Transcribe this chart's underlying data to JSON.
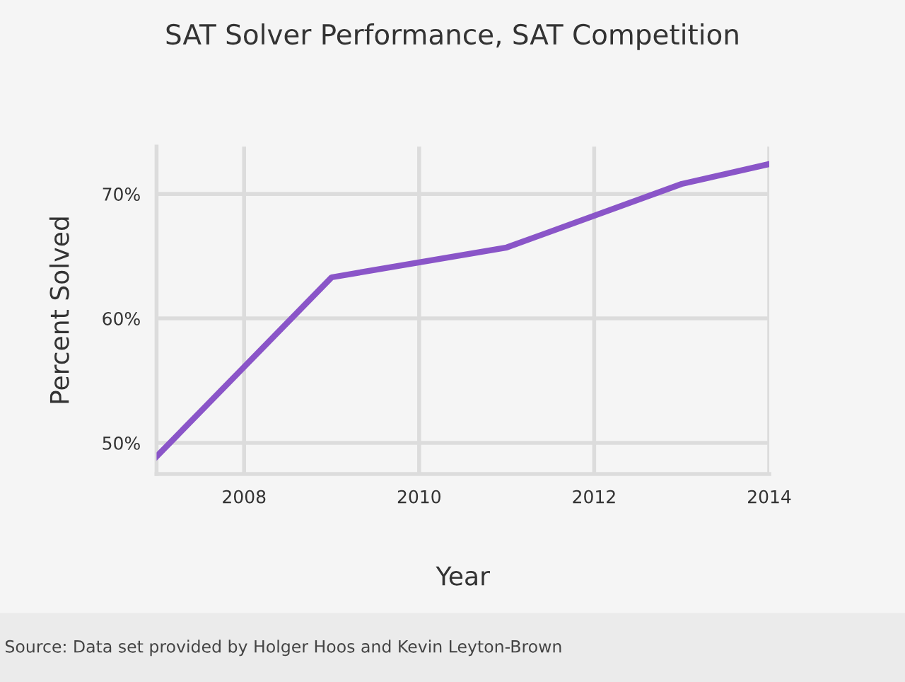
{
  "chart_data": {
    "type": "line",
    "title": "SAT Solver Performance, SAT Competition",
    "xlabel": "Year",
    "ylabel": "Percent Solved",
    "x": [
      2007,
      2009,
      2011,
      2013,
      2014
    ],
    "series": [
      {
        "color": "#8a55c8",
        "values": [
          48.9,
          63.3,
          65.7,
          70.8,
          72.4
        ]
      }
    ],
    "xlim": [
      2007,
      2014
    ],
    "xticks": [
      2008,
      2010,
      2012,
      2014
    ],
    "ylim": [
      47.5,
      73.8
    ],
    "yticks": [
      {
        "value": 50,
        "label": "50%"
      },
      {
        "value": 60,
        "label": "60%"
      },
      {
        "value": 70,
        "label": "70%"
      }
    ],
    "grid": true,
    "legend": false,
    "marker": "none",
    "line_style": "solid",
    "annotations": [
      "Source: Data set provided by Holger Hoos and Kevin Leyton-Brown"
    ]
  }
}
